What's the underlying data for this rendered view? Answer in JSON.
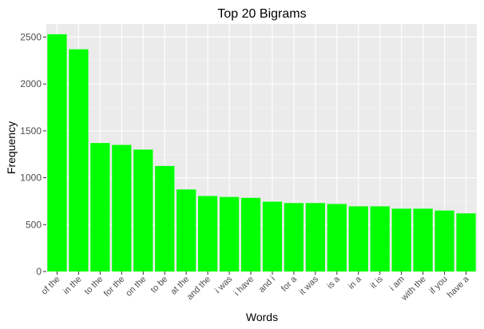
{
  "chart_data": {
    "type": "bar",
    "title": "Top 20 Bigrams",
    "xlabel": "Words",
    "ylabel": "Frequency",
    "categories": [
      "of the",
      "in the",
      "to the",
      "for the",
      "on the",
      "to be",
      "at the",
      "and the",
      "i was",
      "i have",
      "and i",
      "for a",
      "it was",
      "is a",
      "in a",
      "it is",
      "i am",
      "with the",
      "if you",
      "have a"
    ],
    "values": [
      2530,
      2370,
      1370,
      1350,
      1300,
      1125,
      875,
      805,
      795,
      785,
      745,
      730,
      730,
      720,
      695,
      695,
      670,
      670,
      650,
      620
    ],
    "ylim": [
      0,
      2640
    ],
    "yticks": [
      0,
      500,
      1000,
      1500,
      2000,
      2500
    ],
    "grid": true,
    "legend": "none",
    "colors": {
      "bar": "#00ff00",
      "panel": "#ebebeb",
      "grid_major": "#ffffff",
      "grid_minor": "#f5f5f5"
    }
  }
}
